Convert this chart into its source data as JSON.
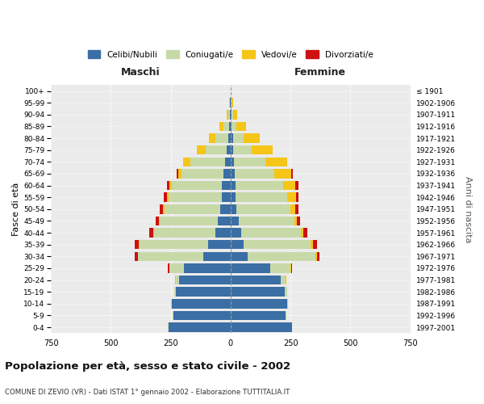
{
  "age_groups": [
    "0-4",
    "5-9",
    "10-14",
    "15-19",
    "20-24",
    "25-29",
    "30-34",
    "35-39",
    "40-44",
    "45-49",
    "50-54",
    "55-59",
    "60-64",
    "65-69",
    "70-74",
    "75-79",
    "80-84",
    "85-89",
    "90-94",
    "95-99",
    "100+"
  ],
  "birth_years": [
    "1997-2001",
    "1992-1996",
    "1987-1991",
    "1982-1986",
    "1977-1981",
    "1972-1976",
    "1967-1971",
    "1962-1966",
    "1957-1961",
    "1952-1956",
    "1947-1951",
    "1942-1946",
    "1937-1941",
    "1932-1936",
    "1927-1931",
    "1922-1926",
    "1917-1921",
    "1912-1916",
    "1907-1911",
    "1902-1906",
    "≤ 1901"
  ],
  "male": {
    "celibi": [
      260,
      240,
      245,
      230,
      215,
      195,
      115,
      95,
      65,
      55,
      42,
      38,
      35,
      30,
      22,
      15,
      10,
      5,
      3,
      2,
      0
    ],
    "coniugati": [
      2,
      2,
      2,
      5,
      15,
      60,
      270,
      285,
      255,
      240,
      235,
      220,
      210,
      175,
      145,
      90,
      55,
      25,
      8,
      3,
      0
    ],
    "vedovi": [
      0,
      0,
      0,
      0,
      1,
      2,
      2,
      3,
      4,
      4,
      6,
      8,
      10,
      15,
      30,
      35,
      25,
      15,
      5,
      2,
      0
    ],
    "divorziati": [
      0,
      0,
      0,
      1,
      2,
      4,
      12,
      18,
      15,
      12,
      12,
      12,
      12,
      5,
      2,
      0,
      0,
      0,
      0,
      0,
      0
    ]
  },
  "female": {
    "nubili": [
      255,
      230,
      235,
      225,
      210,
      165,
      70,
      55,
      45,
      35,
      25,
      22,
      20,
      18,
      15,
      12,
      10,
      5,
      3,
      2,
      0
    ],
    "coniugate": [
      2,
      2,
      3,
      10,
      20,
      85,
      285,
      280,
      250,
      230,
      225,
      215,
      200,
      165,
      130,
      75,
      45,
      20,
      8,
      2,
      0
    ],
    "vedove": [
      0,
      0,
      0,
      0,
      2,
      3,
      5,
      8,
      10,
      12,
      20,
      35,
      50,
      70,
      90,
      90,
      65,
      40,
      15,
      5,
      1
    ],
    "divorziate": [
      0,
      0,
      0,
      1,
      2,
      3,
      12,
      18,
      15,
      12,
      12,
      12,
      12,
      5,
      2,
      0,
      0,
      0,
      0,
      0,
      0
    ]
  },
  "colors": {
    "celibi_nubili": "#3a6ea5",
    "coniugati": "#c8d9a8",
    "vedovi": "#f5c518",
    "divorziati": "#cc1111"
  },
  "title": "Popolazione per età, sesso e stato civile - 2002",
  "subtitle": "COMUNE DI ZEVIO (VR) - Dati ISTAT 1° gennaio 2002 - Elaborazione TUTTITALIA.IT",
  "xlabel_left": "Maschi",
  "xlabel_right": "Femmine",
  "ylabel_left": "Fasce di età",
  "ylabel_right": "Anni di nascita",
  "xlim": 750,
  "background_color": "#ffffff",
  "plot_bg_color": "#ebebeb",
  "grid_color": "#ffffff",
  "legend_labels": [
    "Celibi/Nubili",
    "Coniugati/e",
    "Vedovi/e",
    "Divorziati/e"
  ]
}
